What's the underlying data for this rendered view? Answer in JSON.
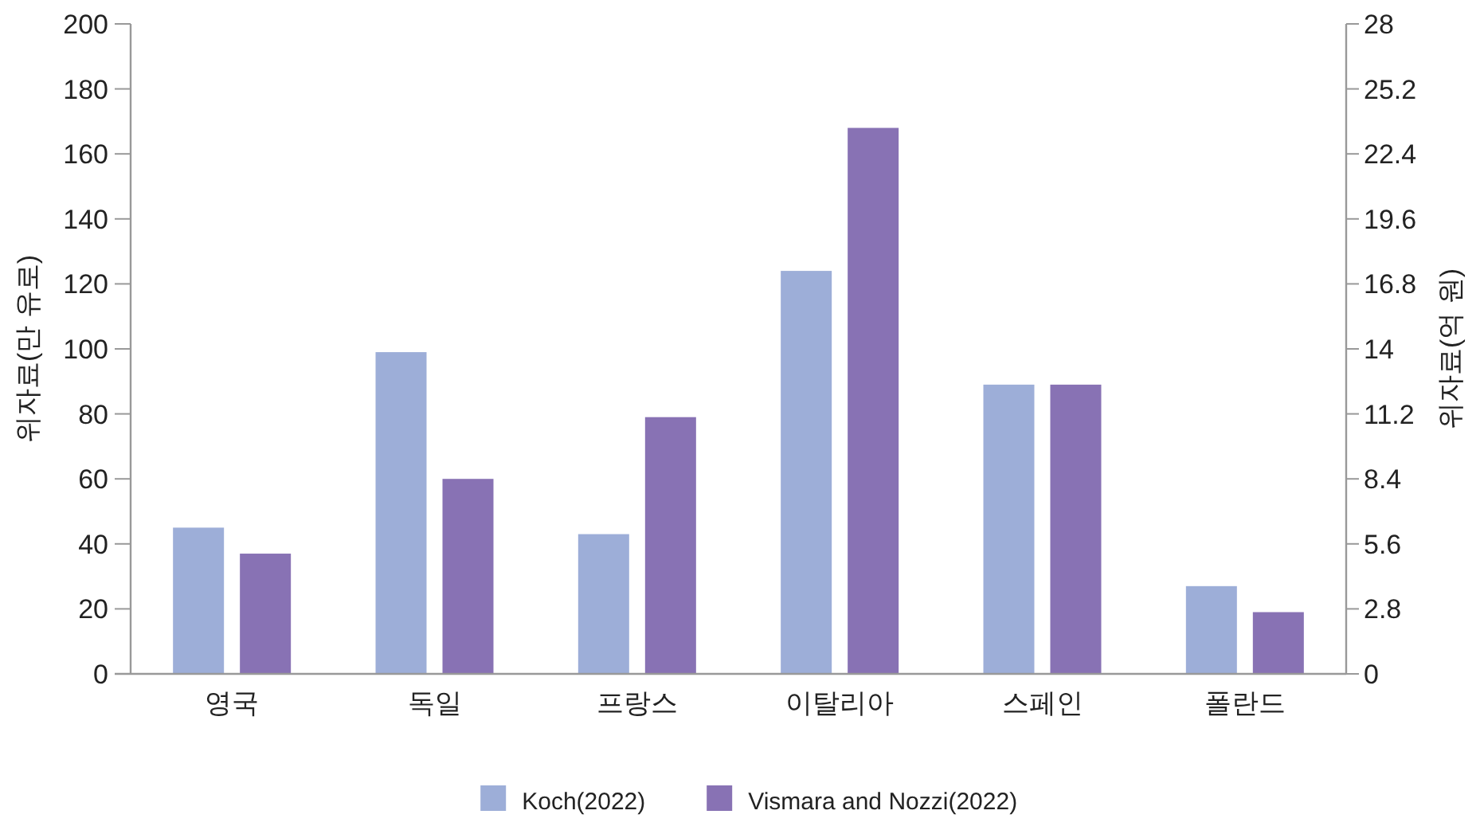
{
  "chart_data": {
    "type": "bar",
    "ylabel": "위자료(만 유로)",
    "y2label": "위자료(억 원)",
    "categories": [
      "영국",
      "독일",
      "프랑스",
      "이탈리아",
      "스페인",
      "폴란드"
    ],
    "series": [
      {
        "name": "Koch(2022)",
        "color": "#9daed8",
        "values": [
          45,
          99,
          43,
          124,
          89,
          27
        ]
      },
      {
        "name": "Vismara and Nozzi(2022)",
        "color": "#8872b4",
        "values": [
          37,
          60,
          79,
          168,
          89,
          19
        ]
      }
    ],
    "ylim": [
      0,
      200
    ],
    "yticks": [
      0,
      20,
      40,
      60,
      80,
      100,
      120,
      140,
      160,
      180,
      200
    ],
    "y2lim": [
      0,
      28
    ],
    "y2ticks": [
      0,
      {
        "value": 2.8,
        "label": "2.8"
      },
      {
        "value": 5.6,
        "label": "5.6"
      },
      {
        "value": 8.4,
        "label": "8.4"
      },
      {
        "value": 11.2,
        "label": "11.2"
      },
      14,
      {
        "value": 16.8,
        "label": "16.8"
      },
      {
        "value": 19.6,
        "label": "19.6"
      },
      {
        "value": 22.4,
        "label": "22.4"
      },
      {
        "value": 25.2,
        "label": "25.2"
      },
      28
    ],
    "grid": false,
    "legend": "bottom"
  }
}
